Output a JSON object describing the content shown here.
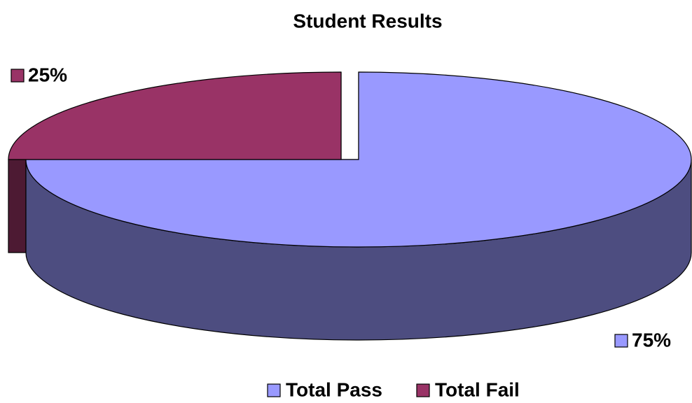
{
  "chart_data": {
    "type": "pie",
    "title": "Student Results",
    "categories": [
      "Total Pass",
      "Total Fail"
    ],
    "values": [
      75,
      25
    ],
    "value_labels": [
      "75%",
      "25%"
    ],
    "colors": [
      "#9999ff",
      "#993366"
    ],
    "legend": "bottom"
  }
}
